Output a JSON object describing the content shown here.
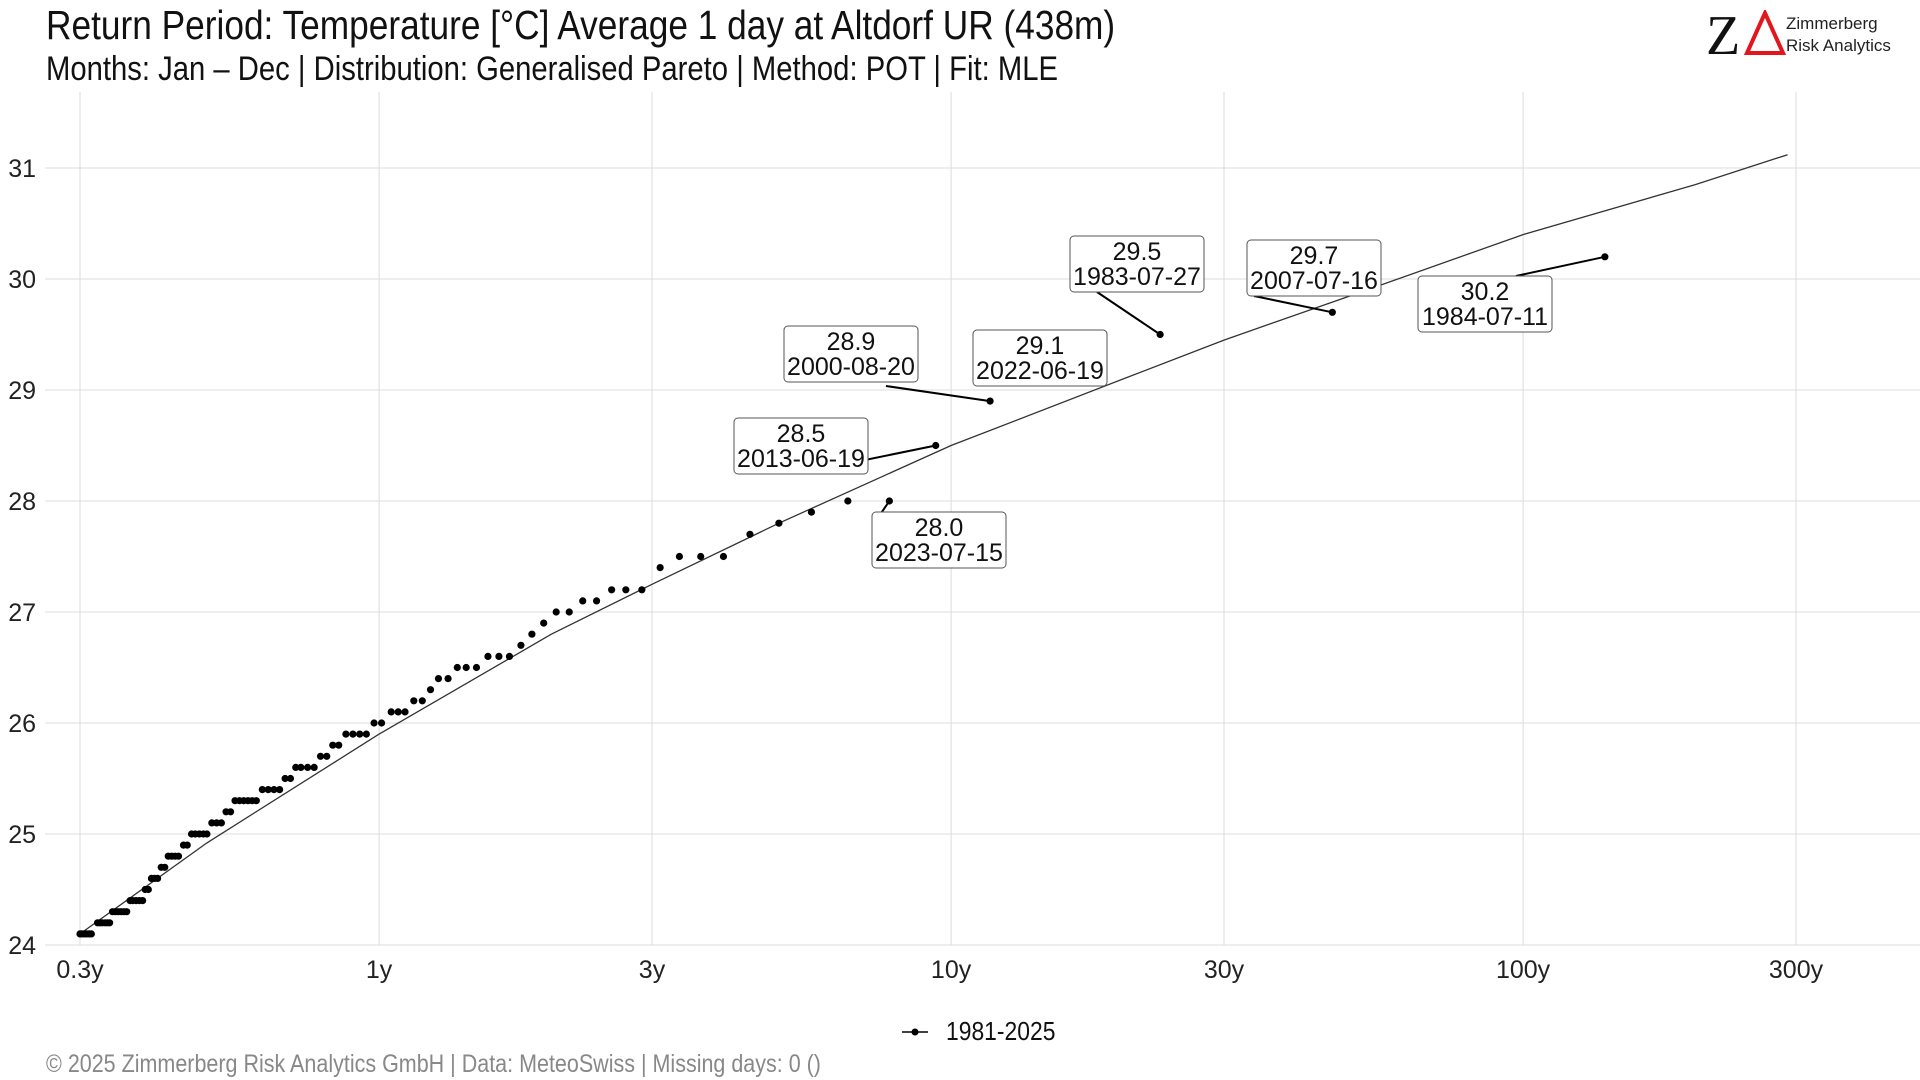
{
  "header": {
    "title": "Return Period: Temperature [°C] Average 1 day at Altdorf  UR (438m)",
    "subtitle": "Months: Jan – Dec | Distribution: Generalised Pareto | Method: POT | Fit: MLE"
  },
  "logo": {
    "mark": "Z",
    "line1": "Zimmerberg",
    "line2": "Risk Analytics",
    "accent_color": "#e3161b"
  },
  "footer": {
    "caption": "©  2025 Zimmerberg Risk Analytics GmbH | Data: MeteoSwiss | Missing days: 0 ()"
  },
  "chart_data": {
    "type": "scatter",
    "x_scale": "log",
    "xlim": [
      0.3,
      500
    ],
    "ylim": [
      24,
      31.5
    ],
    "x_ticks": [
      {
        "value": 0.3,
        "label": "0.3y"
      },
      {
        "value": 1,
        "label": "1y"
      },
      {
        "value": 3,
        "label": "3y"
      },
      {
        "value": 10,
        "label": "10y"
      },
      {
        "value": 30,
        "label": "30y"
      },
      {
        "value": 100,
        "label": "100y"
      },
      {
        "value": 300,
        "label": "300y"
      }
    ],
    "y_ticks": [
      24,
      25,
      26,
      27,
      28,
      29,
      30,
      31
    ],
    "grid": true,
    "legend": {
      "position": "bottom",
      "entries": [
        "1981-2025"
      ]
    },
    "series": [
      {
        "name": "1981-2025",
        "color": "#000000",
        "points": [
          {
            "x": 0.3,
            "y": 24.1
          },
          {
            "x": 0.302,
            "y": 24.1
          },
          {
            "x": 0.305,
            "y": 24.1
          },
          {
            "x": 0.308,
            "y": 24.1
          },
          {
            "x": 0.311,
            "y": 24.1
          },
          {
            "x": 0.314,
            "y": 24.1
          },
          {
            "x": 0.322,
            "y": 24.2
          },
          {
            "x": 0.325,
            "y": 24.2
          },
          {
            "x": 0.328,
            "y": 24.2
          },
          {
            "x": 0.332,
            "y": 24.2
          },
          {
            "x": 0.335,
            "y": 24.2
          },
          {
            "x": 0.338,
            "y": 24.2
          },
          {
            "x": 0.342,
            "y": 24.3
          },
          {
            "x": 0.346,
            "y": 24.3
          },
          {
            "x": 0.35,
            "y": 24.3
          },
          {
            "x": 0.354,
            "y": 24.3
          },
          {
            "x": 0.358,
            "y": 24.3
          },
          {
            "x": 0.362,
            "y": 24.3
          },
          {
            "x": 0.367,
            "y": 24.4
          },
          {
            "x": 0.371,
            "y": 24.4
          },
          {
            "x": 0.376,
            "y": 24.4
          },
          {
            "x": 0.381,
            "y": 24.4
          },
          {
            "x": 0.386,
            "y": 24.4
          },
          {
            "x": 0.39,
            "y": 24.5
          },
          {
            "x": 0.395,
            "y": 24.5
          },
          {
            "x": 0.4,
            "y": 24.6
          },
          {
            "x": 0.405,
            "y": 24.6
          },
          {
            "x": 0.41,
            "y": 24.6
          },
          {
            "x": 0.416,
            "y": 24.7
          },
          {
            "x": 0.422,
            "y": 24.7
          },
          {
            "x": 0.428,
            "y": 24.8
          },
          {
            "x": 0.434,
            "y": 24.8
          },
          {
            "x": 0.44,
            "y": 24.8
          },
          {
            "x": 0.446,
            "y": 24.8
          },
          {
            "x": 0.455,
            "y": 24.9
          },
          {
            "x": 0.462,
            "y": 24.9
          },
          {
            "x": 0.47,
            "y": 25.0
          },
          {
            "x": 0.477,
            "y": 25.0
          },
          {
            "x": 0.485,
            "y": 25.0
          },
          {
            "x": 0.493,
            "y": 25.0
          },
          {
            "x": 0.5,
            "y": 25.0
          },
          {
            "x": 0.51,
            "y": 25.1
          },
          {
            "x": 0.52,
            "y": 25.1
          },
          {
            "x": 0.53,
            "y": 25.1
          },
          {
            "x": 0.54,
            "y": 25.2
          },
          {
            "x": 0.55,
            "y": 25.2
          },
          {
            "x": 0.56,
            "y": 25.3
          },
          {
            "x": 0.57,
            "y": 25.3
          },
          {
            "x": 0.58,
            "y": 25.3
          },
          {
            "x": 0.59,
            "y": 25.3
          },
          {
            "x": 0.6,
            "y": 25.3
          },
          {
            "x": 0.61,
            "y": 25.3
          },
          {
            "x": 0.625,
            "y": 25.4
          },
          {
            "x": 0.64,
            "y": 25.4
          },
          {
            "x": 0.655,
            "y": 25.4
          },
          {
            "x": 0.67,
            "y": 25.4
          },
          {
            "x": 0.685,
            "y": 25.5
          },
          {
            "x": 0.7,
            "y": 25.5
          },
          {
            "x": 0.715,
            "y": 25.6
          },
          {
            "x": 0.73,
            "y": 25.6
          },
          {
            "x": 0.75,
            "y": 25.6
          },
          {
            "x": 0.77,
            "y": 25.6
          },
          {
            "x": 0.79,
            "y": 25.7
          },
          {
            "x": 0.81,
            "y": 25.7
          },
          {
            "x": 0.83,
            "y": 25.8
          },
          {
            "x": 0.85,
            "y": 25.8
          },
          {
            "x": 0.875,
            "y": 25.9
          },
          {
            "x": 0.9,
            "y": 25.9
          },
          {
            "x": 0.925,
            "y": 25.9
          },
          {
            "x": 0.95,
            "y": 25.9
          },
          {
            "x": 0.98,
            "y": 26.0
          },
          {
            "x": 1.01,
            "y": 26.0
          },
          {
            "x": 1.05,
            "y": 26.1
          },
          {
            "x": 1.08,
            "y": 26.1
          },
          {
            "x": 1.11,
            "y": 26.1
          },
          {
            "x": 1.15,
            "y": 26.2
          },
          {
            "x": 1.19,
            "y": 26.2
          },
          {
            "x": 1.23,
            "y": 26.3
          },
          {
            "x": 1.27,
            "y": 26.4
          },
          {
            "x": 1.32,
            "y": 26.4
          },
          {
            "x": 1.37,
            "y": 26.5
          },
          {
            "x": 1.42,
            "y": 26.5
          },
          {
            "x": 1.48,
            "y": 26.5
          },
          {
            "x": 1.55,
            "y": 26.6
          },
          {
            "x": 1.62,
            "y": 26.6
          },
          {
            "x": 1.69,
            "y": 26.6
          },
          {
            "x": 1.77,
            "y": 26.7
          },
          {
            "x": 1.85,
            "y": 26.8
          },
          {
            "x": 1.94,
            "y": 26.9
          },
          {
            "x": 2.04,
            "y": 27.0
          },
          {
            "x": 2.15,
            "y": 27.0
          },
          {
            "x": 2.27,
            "y": 27.1
          },
          {
            "x": 2.4,
            "y": 27.1
          },
          {
            "x": 2.55,
            "y": 27.2
          },
          {
            "x": 2.7,
            "y": 27.2
          },
          {
            "x": 2.88,
            "y": 27.2
          },
          {
            "x": 3.1,
            "y": 27.4
          },
          {
            "x": 3.35,
            "y": 27.5
          },
          {
            "x": 3.65,
            "y": 27.5
          },
          {
            "x": 4.0,
            "y": 27.5
          },
          {
            "x": 4.45,
            "y": 27.7
          },
          {
            "x": 5.0,
            "y": 27.8
          },
          {
            "x": 5.7,
            "y": 27.9
          },
          {
            "x": 6.6,
            "y": 28.0
          },
          {
            "x": 7.8,
            "y": 28.0
          },
          {
            "x": 9.4,
            "y": 28.5
          },
          {
            "x": 11.7,
            "y": 28.9
          },
          {
            "x": 15.5,
            "y": 29.1
          },
          {
            "x": 23.2,
            "y": 29.5
          },
          {
            "x": 46.4,
            "y": 29.7
          },
          {
            "x": 139.0,
            "y": 30.2
          }
        ]
      }
    ],
    "fit_line": [
      {
        "x": 0.3,
        "y": 24.1
      },
      {
        "x": 0.5,
        "y": 24.92
      },
      {
        "x": 1,
        "y": 25.9
      },
      {
        "x": 2,
        "y": 26.8
      },
      {
        "x": 3,
        "y": 27.25
      },
      {
        "x": 5,
        "y": 27.8
      },
      {
        "x": 10,
        "y": 28.5
      },
      {
        "x": 20,
        "y": 29.1
      },
      {
        "x": 30,
        "y": 29.45
      },
      {
        "x": 50,
        "y": 29.85
      },
      {
        "x": 100,
        "y": 30.4
      },
      {
        "x": 200,
        "y": 30.85
      },
      {
        "x": 290,
        "y": 31.12
      }
    ],
    "annotations": [
      {
        "value": "28.0",
        "date": "2023-07-15",
        "point_x": 7.8,
        "point_y": 28.0
      },
      {
        "value": "28.5",
        "date": "2013-06-19",
        "point_x": 9.4,
        "point_y": 28.5
      },
      {
        "value": "28.9",
        "date": "2000-08-20",
        "point_x": 11.7,
        "point_y": 28.9
      },
      {
        "value": "29.1",
        "date": "2022-06-19",
        "point_x": 15.5,
        "point_y": 29.1
      },
      {
        "value": "29.5",
        "date": "1983-07-27",
        "point_x": 23.2,
        "point_y": 29.5
      },
      {
        "value": "29.7",
        "date": "2007-07-16",
        "point_x": 46.4,
        "point_y": 29.7
      },
      {
        "value": "30.2",
        "date": "1984-07-11",
        "point_x": 139.0,
        "point_y": 30.2
      }
    ]
  }
}
